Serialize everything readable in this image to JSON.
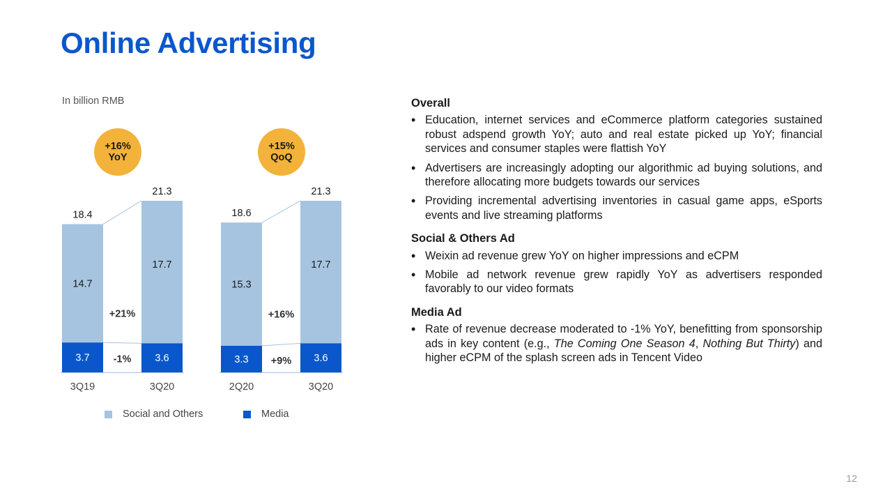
{
  "title": "Online Advertising",
  "unit_label": "In billion RMB",
  "colors": {
    "title": "#0a57cc",
    "social": "#a6c4e0",
    "media": "#0a57cc",
    "badge": "#f3b23a"
  },
  "chart_data": [
    {
      "type": "bar",
      "stacked": true,
      "categories": [
        "3Q19",
        "3Q20"
      ],
      "series": [
        {
          "name": "Media",
          "values": [
            3.7,
            3.6
          ]
        },
        {
          "name": "Social and Others",
          "values": [
            14.7,
            17.7
          ]
        }
      ],
      "totals": [
        18.4,
        21.3
      ],
      "growth": {
        "media": "-1%",
        "social": "+21%"
      },
      "badge": {
        "line1": "+16%",
        "line2": "YoY"
      }
    },
    {
      "type": "bar",
      "stacked": true,
      "categories": [
        "2Q20",
        "3Q20"
      ],
      "series": [
        {
          "name": "Media",
          "values": [
            3.3,
            3.6
          ]
        },
        {
          "name": "Social and Others",
          "values": [
            15.3,
            17.7
          ]
        }
      ],
      "totals": [
        18.6,
        21.3
      ],
      "growth": {
        "media": "+9%",
        "social": "+16%"
      },
      "badge": {
        "line1": "+15%",
        "line2": "QoQ"
      }
    }
  ],
  "legend": {
    "social": "Social and Others",
    "media": "Media"
  },
  "sections": [
    {
      "heading": "Overall",
      "bullets": [
        "Education, internet services and  eCommerce platform categories sustained robust adspend growth YoY; auto and real estate picked up YoY; financial services and consumer staples were flattish YoY",
        "Advertisers are increasingly adopting our algorithmic ad buying solutions, and therefore allocating more budgets towards our services",
        "Providing incremental advertising inventories in casual game apps, eSports events and live streaming platforms"
      ]
    },
    {
      "heading": "Social & Others Ad",
      "bullets": [
        "Weixin ad revenue grew YoY on higher impressions and eCPM",
        "Mobile ad network revenue grew rapidly YoY as advertisers responded favorably to our video formats"
      ]
    },
    {
      "heading": "Media Ad",
      "bullets_rich": [
        {
          "before": "Rate of revenue decrease moderated to -1% YoY, benefitting from sponsorship ads in key content (e.g., ",
          "italic1": "The Coming One Season 4",
          "middle": ", ",
          "italic2": "Nothing But Thirty",
          "after": ") and higher eCPM of the splash screen ads in Tencent Video"
        }
      ]
    }
  ],
  "page_number": "12"
}
